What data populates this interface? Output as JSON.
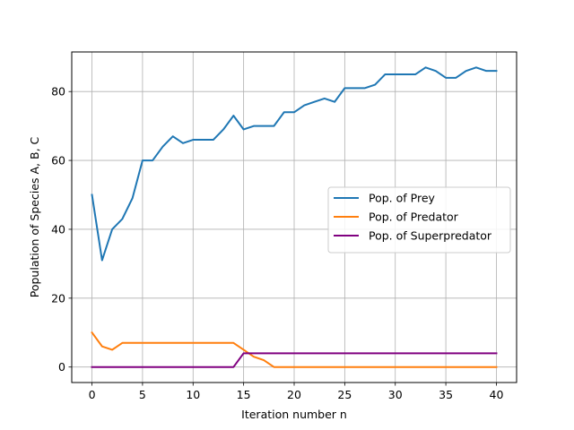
{
  "chart_data": {
    "type": "line",
    "title": "",
    "xlabel": "Iteration number n",
    "ylabel": "Population of Species A, B, C",
    "xlim": [
      -2,
      42
    ],
    "ylim": [
      -4.5,
      91.5
    ],
    "xticks": [
      0,
      5,
      10,
      15,
      20,
      25,
      30,
      35,
      40
    ],
    "yticks": [
      0,
      20,
      40,
      60,
      80
    ],
    "grid": true,
    "legend_position": "center-right",
    "x": [
      0,
      1,
      2,
      3,
      4,
      5,
      6,
      7,
      8,
      9,
      10,
      11,
      12,
      13,
      14,
      15,
      16,
      17,
      18,
      19,
      20,
      21,
      22,
      23,
      24,
      25,
      26,
      27,
      28,
      29,
      30,
      31,
      32,
      33,
      34,
      35,
      36,
      37,
      38,
      39,
      40
    ],
    "series": [
      {
        "name": "Pop. of Prey",
        "color": "#1f77b4",
        "values": [
          50,
          31,
          40,
          43,
          49,
          60,
          60,
          64,
          67,
          65,
          66,
          66,
          66,
          69,
          73,
          69,
          70,
          70,
          70,
          74,
          74,
          76,
          77,
          78,
          77,
          81,
          81,
          81,
          82,
          85,
          85,
          85,
          85,
          87,
          86,
          84,
          84,
          86,
          87,
          86,
          86
        ]
      },
      {
        "name": "Pop. of Predator",
        "color": "#ff7f0e",
        "values": [
          10,
          6,
          5,
          7,
          7,
          7,
          7,
          7,
          7,
          7,
          7,
          7,
          7,
          7,
          7,
          5,
          3,
          2,
          0,
          0,
          0,
          0,
          0,
          0,
          0,
          0,
          0,
          0,
          0,
          0,
          0,
          0,
          0,
          0,
          0,
          0,
          0,
          0,
          0,
          0,
          0
        ]
      },
      {
        "name": "Pop. of Superpredator",
        "color": "#800080",
        "values": [
          0,
          0,
          0,
          0,
          0,
          0,
          0,
          0,
          0,
          0,
          0,
          0,
          0,
          0,
          0,
          4,
          4,
          4,
          4,
          4,
          4,
          4,
          4,
          4,
          4,
          4,
          4,
          4,
          4,
          4,
          4,
          4,
          4,
          4,
          4,
          4,
          4,
          4,
          4,
          4,
          4
        ]
      }
    ]
  }
}
